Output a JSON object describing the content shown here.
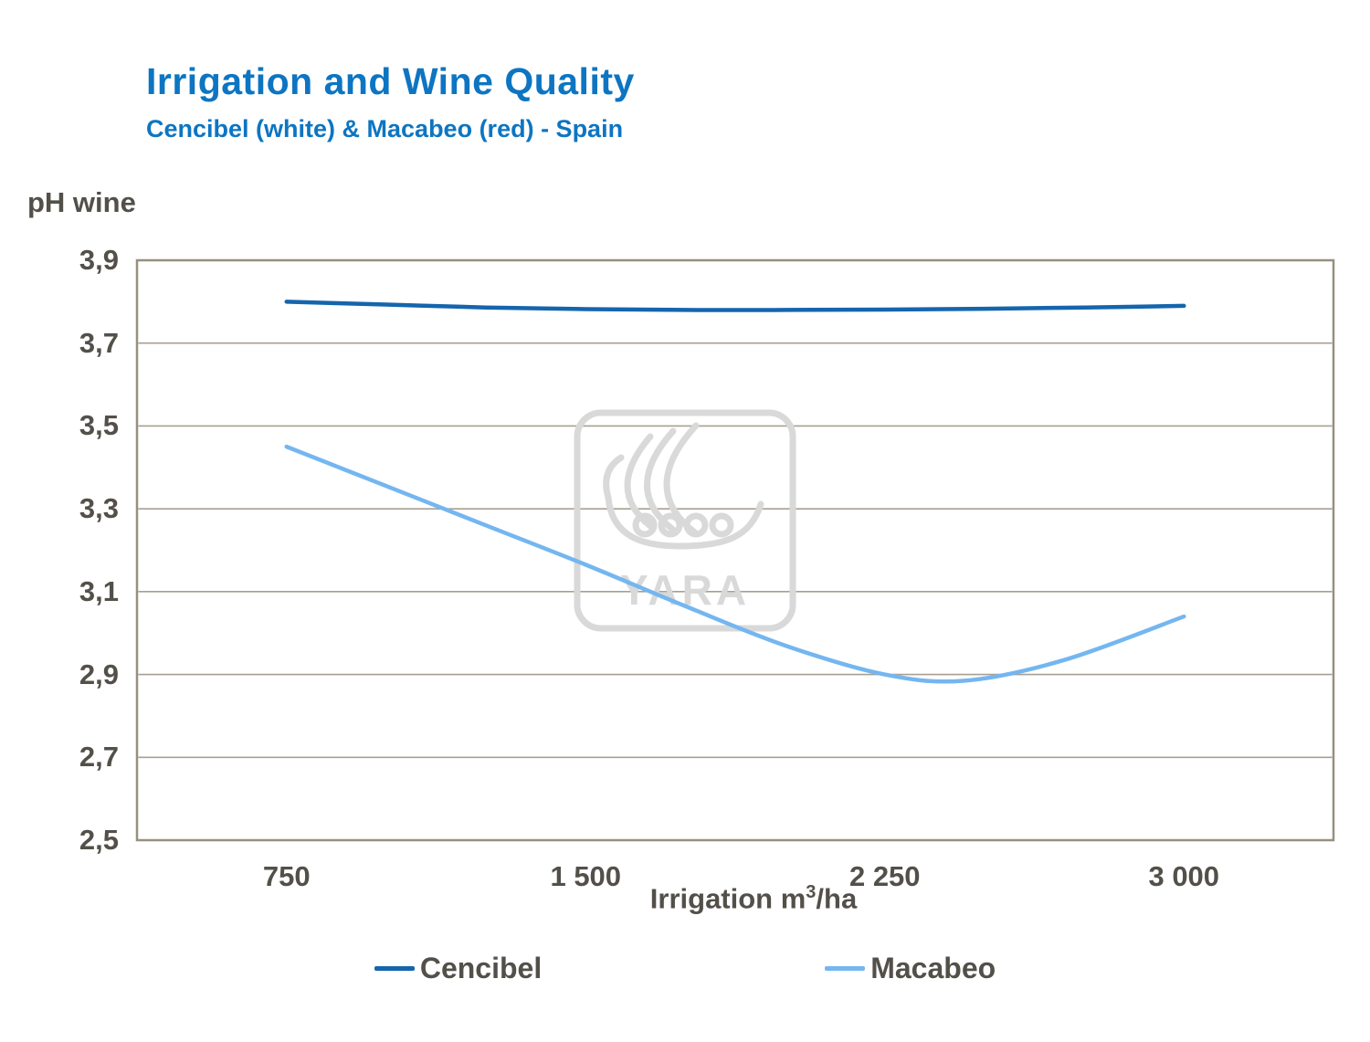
{
  "title": "Irrigation and Wine Quality",
  "subtitle": "Cencibel (white) & Macabeo (red) - Spain",
  "y_axis_label": "pH wine",
  "x_axis_label": {
    "prefix": "Irrigation m",
    "sup": "3",
    "suffix": "/ha"
  },
  "watermark": {
    "text": "YARA"
  },
  "colors": {
    "title": "#0d75c2",
    "frame": "#97907f",
    "grid": "#a89f90",
    "text": "#53504a",
    "cencibel": "#1565ad",
    "macabeo": "#74b6f0",
    "watermark": "#d9d9d9"
  },
  "legend": [
    {
      "name": "Cencibel",
      "color": "#1565ad"
    },
    {
      "name": "Macabeo",
      "color": "#74b6f0"
    }
  ],
  "chart_data": {
    "type": "line",
    "title": "Irrigation and Wine Quality",
    "subtitle": "Cencibel (white) & Macabeo (red) - Spain",
    "xlabel": "Irrigation m3/ha",
    "ylabel": "pH wine",
    "x_domain": [
      375,
      3375
    ],
    "y_domain": [
      2.5,
      3.9
    ],
    "x_ticks": [
      {
        "label": "750",
        "value": 750
      },
      {
        "label": "1 500",
        "value": 1500
      },
      {
        "label": "2 250",
        "value": 2250
      },
      {
        "label": "3 000",
        "value": 3000
      }
    ],
    "y_ticks": [
      {
        "label": "2,5",
        "value": 2.5
      },
      {
        "label": "2,7",
        "value": 2.7
      },
      {
        "label": "2,9",
        "value": 2.9
      },
      {
        "label": "3,1",
        "value": 3.1
      },
      {
        "label": "3,3",
        "value": 3.3
      },
      {
        "label": "3,5",
        "value": 3.5
      },
      {
        "label": "3,7",
        "value": 3.7
      },
      {
        "label": "3,9",
        "value": 3.9
      }
    ],
    "series": [
      {
        "name": "Cencibel",
        "color": "#1565ad",
        "width": 4.5,
        "points": [
          [
            750,
            3.8
          ],
          [
            1000,
            3.793
          ],
          [
            1250,
            3.786
          ],
          [
            1500,
            3.782
          ],
          [
            1750,
            3.78
          ],
          [
            2000,
            3.78
          ],
          [
            2250,
            3.781
          ],
          [
            2500,
            3.783
          ],
          [
            2750,
            3.786
          ],
          [
            3000,
            3.79
          ]
        ]
      },
      {
        "name": "Macabeo",
        "color": "#74b6f0",
        "width": 4.5,
        "points": [
          [
            750,
            3.45
          ],
          [
            1000,
            3.355
          ],
          [
            1250,
            3.26
          ],
          [
            1500,
            3.165
          ],
          [
            1750,
            3.065
          ],
          [
            2000,
            2.97
          ],
          [
            2250,
            2.9
          ],
          [
            2450,
            2.885
          ],
          [
            2700,
            2.935
          ],
          [
            3000,
            3.04
          ]
        ]
      }
    ],
    "grid": "horizontal",
    "legend_position": "bottom"
  }
}
